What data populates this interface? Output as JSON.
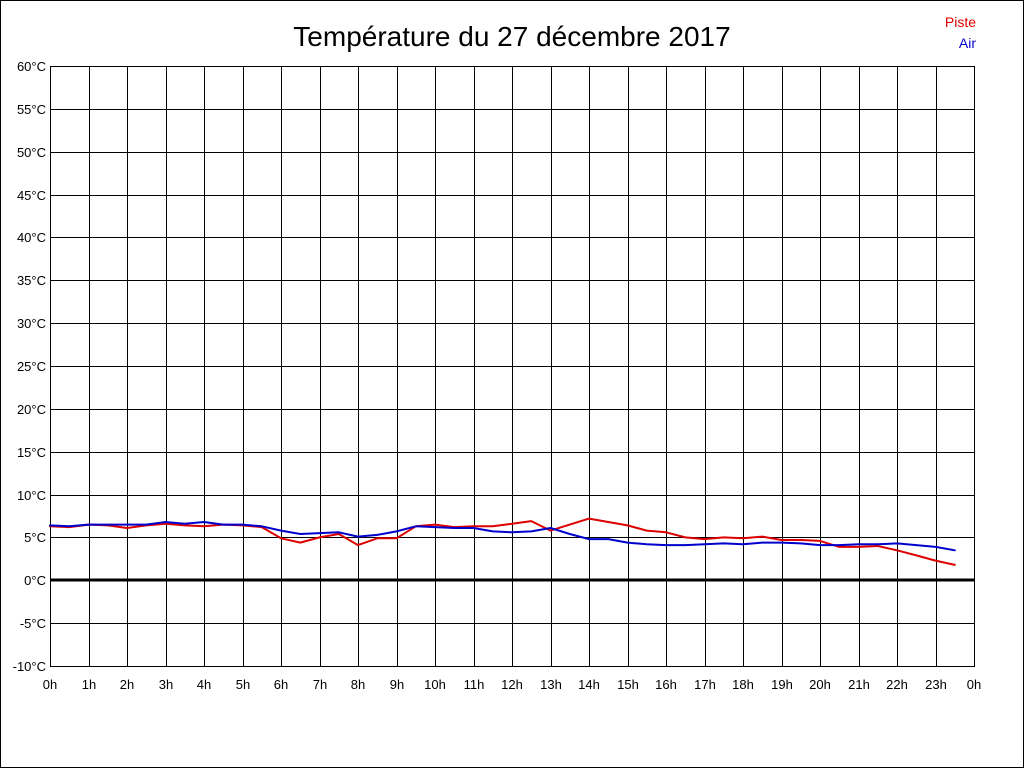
{
  "chart_data": {
    "type": "line",
    "title": "Température du 27 décembre 2017",
    "legend": "top-right",
    "grid": true,
    "zero_line": true,
    "xlim": [
      0,
      24
    ],
    "ylim": [
      -10,
      60
    ],
    "xtick_values": [
      0,
      1,
      2,
      3,
      4,
      5,
      6,
      7,
      8,
      9,
      10,
      11,
      12,
      13,
      14,
      15,
      16,
      17,
      18,
      19,
      20,
      21,
      22,
      23,
      24
    ],
    "xtick_labels": [
      "0h",
      "1h",
      "2h",
      "3h",
      "4h",
      "5h",
      "6h",
      "7h",
      "8h",
      "9h",
      "10h",
      "11h",
      "12h",
      "13h",
      "14h",
      "15h",
      "16h",
      "17h",
      "18h",
      "19h",
      "20h",
      "21h",
      "22h",
      "23h",
      "0h"
    ],
    "ytick_values": [
      60,
      55,
      50,
      45,
      40,
      35,
      30,
      25,
      20,
      15,
      10,
      5,
      0,
      -5,
      -10
    ],
    "ytick_labels": [
      "60°C",
      "55°C",
      "50°C",
      "45°C",
      "40°C",
      "35°C",
      "30°C",
      "25°C",
      "20°C",
      "15°C",
      "10°C",
      "5°C",
      "0°C",
      "-5°C",
      "-10°C"
    ],
    "x": [
      0,
      0.5,
      1,
      1.5,
      2,
      2.5,
      3,
      3.5,
      4,
      4.5,
      5,
      5.5,
      6,
      6.5,
      7,
      7.5,
      8,
      8.5,
      9,
      9.5,
      10,
      10.5,
      11,
      11.5,
      12,
      12.5,
      13,
      13.5,
      14,
      14.5,
      15,
      15.5,
      16,
      16.5,
      17,
      17.5,
      18,
      18.5,
      19,
      19.5,
      20,
      20.5,
      21,
      21.5,
      22,
      22.5,
      23,
      23.5
    ],
    "series": [
      {
        "name": "Piste",
        "color": "#dd0000",
        "values": [
          6.3,
          6.2,
          6.5,
          6.4,
          6.1,
          6.4,
          6.6,
          6.4,
          6.3,
          6.5,
          6.4,
          6.2,
          4.9,
          4.4,
          5.0,
          5.4,
          4.1,
          4.9,
          4.9,
          6.3,
          6.5,
          6.2,
          6.3,
          6.3,
          6.6,
          6.9,
          5.8,
          6.5,
          7.2,
          6.8,
          6.4,
          5.8,
          5.6,
          5.0,
          4.8,
          5.0,
          4.9,
          5.1,
          4.7,
          4.7,
          4.6,
          3.9,
          3.9,
          4.0,
          3.5,
          2.9,
          2.3,
          1.8
        ]
      },
      {
        "name": "Air",
        "color": "#0000cc",
        "values": [
          6.4,
          6.3,
          6.5,
          6.5,
          6.5,
          6.5,
          6.8,
          6.6,
          6.8,
          6.5,
          6.5,
          6.3,
          5.8,
          5.4,
          5.5,
          5.6,
          5.1,
          5.3,
          5.7,
          6.3,
          6.2,
          6.1,
          6.1,
          5.7,
          5.6,
          5.7,
          6.1,
          5.4,
          4.8,
          4.8,
          4.4,
          4.2,
          4.1,
          4.1,
          4.2,
          4.3,
          4.2,
          4.4,
          4.4,
          4.3,
          4.1,
          4.1,
          4.2,
          4.2,
          4.3,
          4.1,
          3.9,
          3.5
        ]
      }
    ]
  }
}
